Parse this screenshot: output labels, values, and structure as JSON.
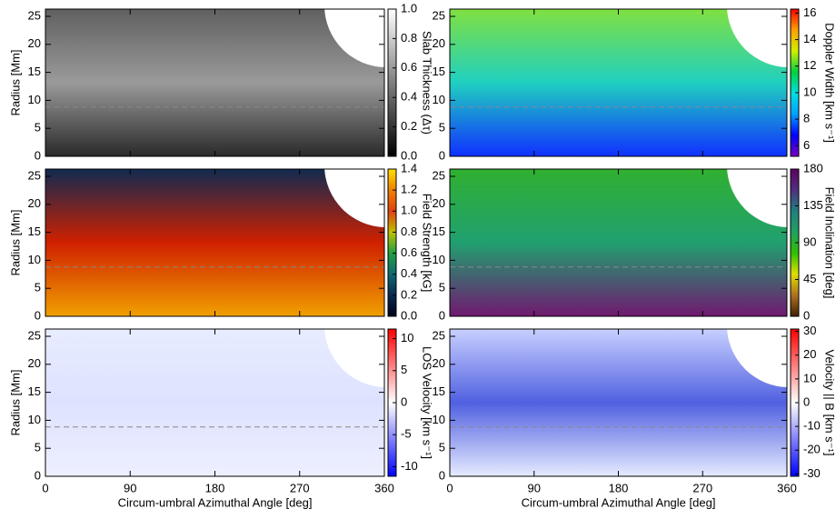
{
  "chart_data": [
    {
      "type": "heatmap",
      "ylabel": "Radius [Mm]",
      "colorbar_label": "Slab Thickness (Δτ)",
      "xlim": [
        0,
        360
      ],
      "xticks": [
        0,
        90,
        180,
        270,
        360
      ],
      "show_xtick_labels": false,
      "ylim": [
        0,
        26.3
      ],
      "yticks": [
        0,
        5,
        10,
        15,
        20,
        25
      ],
      "hline": 8.8,
      "clim": [
        0,
        1
      ],
      "cticks": [
        {
          "value": 0,
          "label": "0.0"
        },
        0.2,
        0.4,
        0.6,
        0.8,
        {
          "value": 1,
          "label": "1.0"
        }
      ],
      "colormap": [
        "#000000",
        "#ffffff"
      ]
    },
    {
      "type": "heatmap",
      "colorbar_label": "Doppler Width [km s⁻¹]",
      "xlim": [
        0,
        360
      ],
      "xticks": [
        0,
        90,
        180,
        270,
        360
      ],
      "show_xtick_labels": false,
      "ylim": [
        0,
        26.3
      ],
      "yticks": [
        0,
        5,
        10,
        15,
        20,
        25
      ],
      "hline": 8.8,
      "clim": [
        5.2,
        16.3
      ],
      "cticks": [
        6,
        8,
        10,
        12,
        14,
        16
      ],
      "colormap": [
        "#7a00c0",
        "#0000ff",
        "#00a0ff",
        "#00e0e0",
        "#00d040",
        "#d0f000",
        "#ffa000",
        "#ff0000"
      ]
    },
    {
      "type": "heatmap",
      "ylabel": "Radius [Mm]",
      "colorbar_label": "Field Strength [kG]",
      "xlim": [
        0,
        360
      ],
      "xticks": [
        0,
        90,
        180,
        270,
        360
      ],
      "show_xtick_labels": false,
      "ylim": [
        0,
        26.3
      ],
      "yticks": [
        0,
        5,
        10,
        15,
        20,
        25
      ],
      "hline": 8.8,
      "clim": [
        0,
        1.4
      ],
      "cticks": [
        {
          "value": 0,
          "label": "0.0"
        },
        0.2,
        0.4,
        0.6,
        0.8,
        {
          "value": 1,
          "label": "1.0"
        },
        1.2,
        1.4
      ],
      "colormap": [
        "#000018",
        "#0a2850",
        "#106870",
        "#20a040",
        "#c0c000",
        "#e04010",
        "#f08000",
        "#ffe000"
      ]
    },
    {
      "type": "heatmap",
      "colorbar_label": "Field Inclination [deg]",
      "xlim": [
        0,
        360
      ],
      "xticks": [
        0,
        90,
        180,
        270,
        360
      ],
      "show_xtick_labels": false,
      "ylim": [
        0,
        26.3
      ],
      "yticks": [
        0,
        5,
        10,
        15,
        20,
        25
      ],
      "hline": 8.8,
      "clim": [
        0,
        180
      ],
      "cticks": [
        0,
        45,
        90,
        135,
        180
      ],
      "colormap": [
        "#402000",
        "#b07020",
        "#e0e000",
        "#30c000",
        "#20a060",
        "#208080",
        "#503080",
        "#600060"
      ]
    },
    {
      "type": "heatmap",
      "ylabel": "Radius [Mm]",
      "xlabel": "Circum-umbral Azimuthal Angle [deg]",
      "colorbar_label": "LOS Velocity [km s⁻¹]",
      "xlim": [
        0,
        360
      ],
      "xticks": [
        0,
        90,
        180,
        270,
        360
      ],
      "show_xtick_labels": true,
      "ylim": [
        0,
        26.3
      ],
      "yticks": [
        0,
        5,
        10,
        15,
        20,
        25
      ],
      "hline": 8.8,
      "clim": [
        -11.5,
        11.5
      ],
      "cticks": [
        -10,
        -5,
        0,
        5,
        10
      ],
      "colormap": [
        "#0000ff",
        "#ffffff",
        "#ff0000"
      ]
    },
    {
      "type": "heatmap",
      "xlabel": "Circum-umbral Azimuthal Angle [deg]",
      "colorbar_label": "Velocity || B [km s⁻¹]",
      "xlim": [
        0,
        360
      ],
      "xticks": [
        0,
        90,
        180,
        270,
        360
      ],
      "show_xtick_labels": true,
      "ylim": [
        0,
        26.3
      ],
      "yticks": [
        0,
        5,
        10,
        15,
        20,
        25
      ],
      "hline": 8.8,
      "clim": [
        -31,
        31
      ],
      "cticks": [
        -30,
        -20,
        -10,
        0,
        10,
        20,
        30
      ],
      "colormap": [
        "#0000ff",
        "#ffffff",
        "#ff0000"
      ]
    }
  ]
}
